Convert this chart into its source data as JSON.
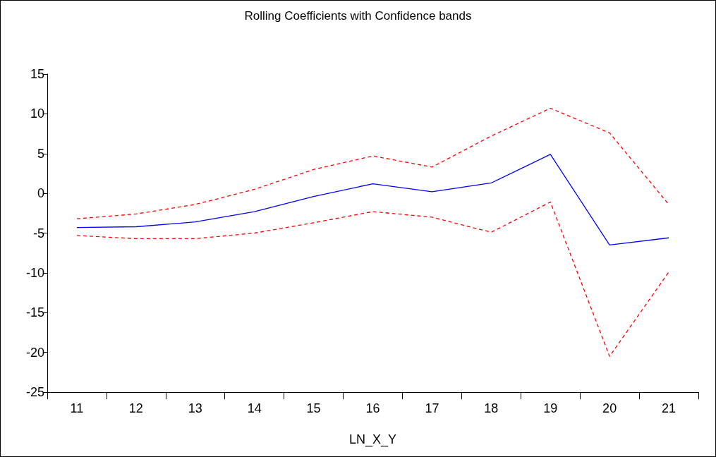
{
  "chart_data": {
    "type": "line",
    "title": "Rolling Coefficients with Confidence bands",
    "xlabel": "LN_X_Y",
    "categories": [
      "11",
      "12",
      "13",
      "14",
      "15",
      "16",
      "17",
      "18",
      "19",
      "20",
      "21"
    ],
    "series": [
      {
        "color": "#0000ff",
        "line_style": "solid",
        "values": [
          -4.3,
          -4.2,
          -3.6,
          -2.3,
          -0.4,
          1.2,
          0.2,
          1.3,
          4.9,
          -6.5,
          -5.6
        ]
      },
      {
        "color": "#ff0000",
        "line_style": "dashed",
        "values": [
          -3.2,
          -2.6,
          -1.4,
          0.5,
          3.0,
          4.7,
          3.3,
          7.2,
          10.7,
          7.6,
          -1.4
        ]
      },
      {
        "color": "#ff0000",
        "line_style": "dashed",
        "values": [
          -5.3,
          -5.7,
          -5.7,
          -5.0,
          -3.7,
          -2.3,
          -3.0,
          -4.9,
          -1.1,
          -20.5,
          -9.9
        ]
      }
    ],
    "ylim": [
      -25,
      15
    ],
    "yticks": [
      -25,
      -20,
      -15,
      -10,
      -5,
      0,
      5,
      10,
      15
    ],
    "grid": false,
    "marker": "none"
  }
}
